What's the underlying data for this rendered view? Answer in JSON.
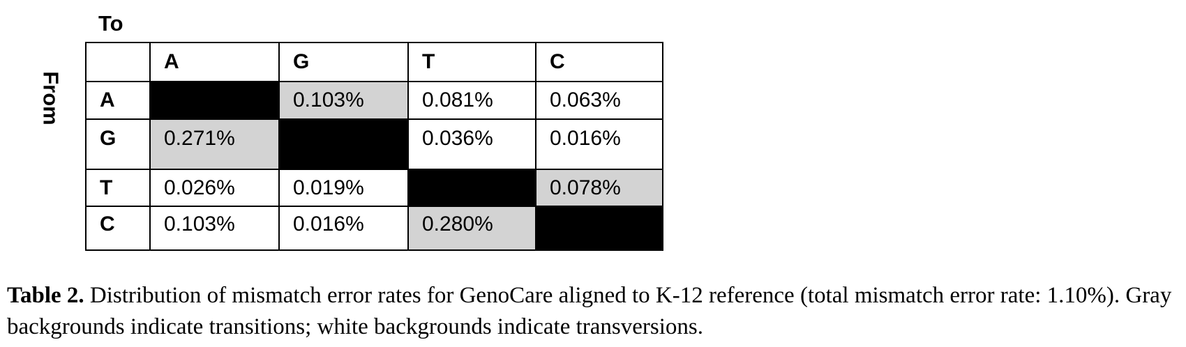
{
  "table": {
    "to_label": "To",
    "from_label": "From",
    "column_headers": [
      "A",
      "G",
      "T",
      "C"
    ],
    "rows": [
      {
        "label": "A",
        "cells": [
          {
            "value": "",
            "type": "diag"
          },
          {
            "value": "0.103%",
            "type": "gray"
          },
          {
            "value": "0.081%",
            "type": "white"
          },
          {
            "value": "0.063%",
            "type": "white"
          }
        ]
      },
      {
        "label": "G",
        "cells": [
          {
            "value": "0.271%",
            "type": "gray"
          },
          {
            "value": "",
            "type": "diag"
          },
          {
            "value": "0.036%",
            "type": "white"
          },
          {
            "value": "0.016%",
            "type": "white"
          }
        ]
      },
      {
        "label": "T",
        "cells": [
          {
            "value": "0.026%",
            "type": "white"
          },
          {
            "value": "0.019%",
            "type": "white"
          },
          {
            "value": "",
            "type": "diag"
          },
          {
            "value": "0.078%",
            "type": "gray"
          }
        ]
      },
      {
        "label": "C",
        "cells": [
          {
            "value": "0.103%",
            "type": "white"
          },
          {
            "value": "0.016%",
            "type": "white"
          },
          {
            "value": "0.280%",
            "type": "gray"
          },
          {
            "value": "",
            "type": "diag"
          }
        ]
      }
    ],
    "colors": {
      "transition": "#d3d3d3",
      "transversion": "#ffffff",
      "diagonal": "#000000"
    }
  },
  "caption": {
    "label": "Table 2.",
    "text": " Distribution of mismatch error rates for GenoCare aligned to K-12 reference (total mismatch error rate: 1.10%). Gray backgrounds indicate transitions; white backgrounds indicate transversions."
  }
}
